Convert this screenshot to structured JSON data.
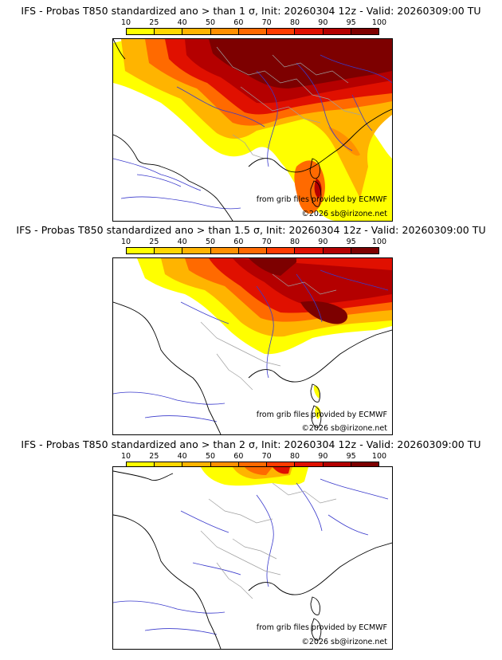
{
  "panels": [
    {
      "title": "IFS - Probas T850  standardized ano > than 1 σ, Init: 20260304 12z - Valid: 20260309:00 TU",
      "threshold_sigma": 1
    },
    {
      "title": "IFS - Probas T850  standardized ano > than 1.5 σ, Init: 20260304 12z - Valid: 20260309:00 TU",
      "threshold_sigma": 1.5
    },
    {
      "title": "IFS - Probas T850  standardized ano > than 2 σ, Init: 20260304 12z - Valid: 20260309:00 TU",
      "threshold_sigma": 2
    }
  ],
  "colorbar": {
    "labels": [
      "10",
      "25",
      "40",
      "50",
      "60",
      "70",
      "80",
      "90",
      "95",
      "100"
    ],
    "colors": [
      "#ffff00",
      "#ffd700",
      "#ffb400",
      "#ff9000",
      "#ff6a00",
      "#ff3c00",
      "#e01000",
      "#b40000",
      "#7d0000"
    ]
  },
  "credits": {
    "source": "from grib files provided by ECMWF",
    "copyright": "©2026 sb@irizone.net"
  },
  "colors": {
    "rivers": "#3a3acc",
    "borders": "#a0a0a0",
    "coast": "#000000"
  }
}
